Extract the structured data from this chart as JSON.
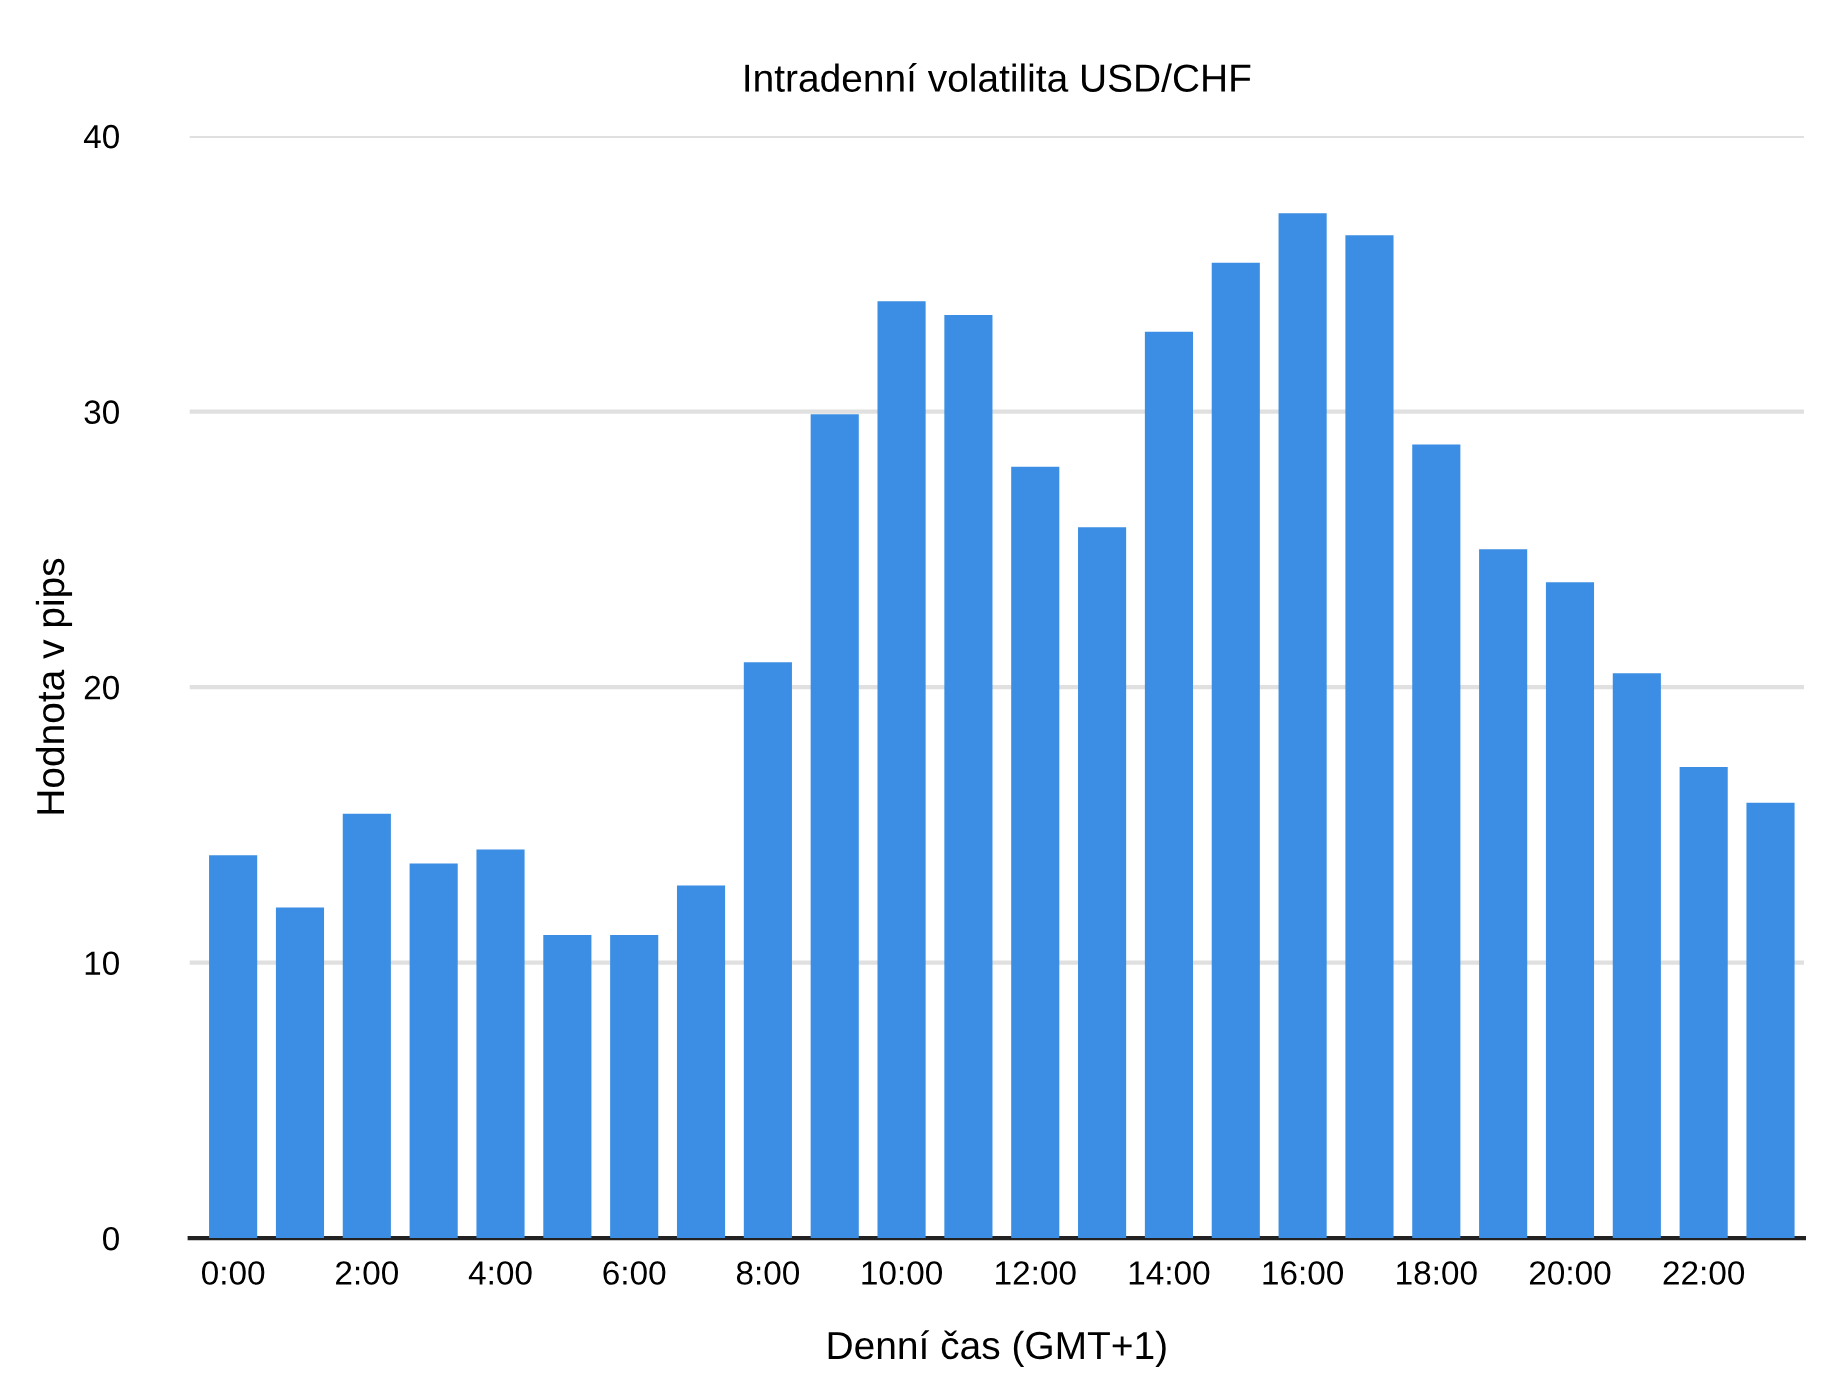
{
  "chart_data": {
    "type": "bar",
    "title": "Intradenní volatilita USD/CHF",
    "xlabel": "Denní čas (GMT+1)",
    "ylabel": "Hodnota v pips",
    "categories": [
      "0:00",
      null,
      "2:00",
      null,
      "4:00",
      null,
      "6:00",
      null,
      "8:00",
      null,
      "10:00",
      null,
      "12:00",
      null,
      "14:00",
      null,
      "16:00",
      null,
      "18:00",
      null,
      "20:00",
      null,
      "22:00",
      null
    ],
    "values": [
      13.9,
      12.0,
      15.4,
      13.6,
      14.1,
      11.0,
      11.0,
      12.8,
      20.9,
      29.9,
      34.0,
      33.5,
      28.0,
      25.8,
      32.9,
      35.4,
      37.2,
      36.4,
      28.8,
      25.0,
      23.8,
      20.5,
      17.1,
      15.8
    ],
    "color": "#3b8ee3",
    "ylim": [
      0,
      40
    ],
    "yticks": [
      0,
      10,
      20,
      30,
      40
    ],
    "grid": "y"
  }
}
